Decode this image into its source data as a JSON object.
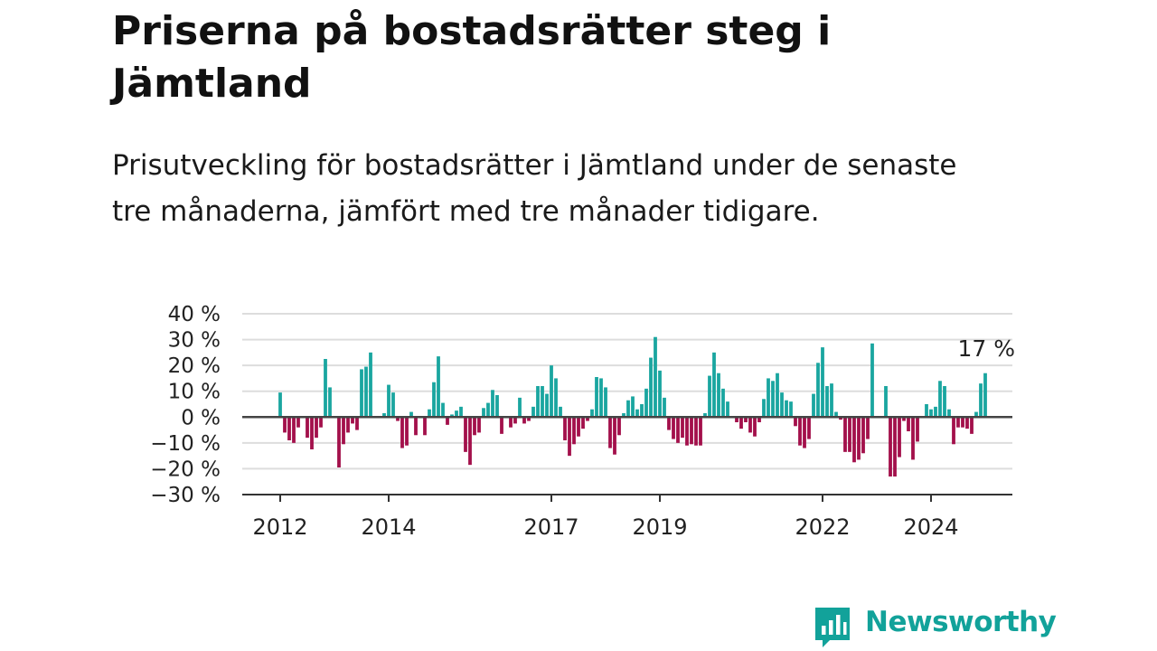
{
  "title": "Priserna på bostadsrätter steg i Jämtland",
  "subtitle": "Prisutveckling för bostadsrätter i Jämtland under de senaste tre månaderna, jämfört med tre månader tidigare.",
  "brand": {
    "name": "Newsworthy",
    "color": "#12a29a"
  },
  "colors": {
    "positive": "#1aa6a0",
    "negative": "#a3104b",
    "zero_line": "#444444",
    "grid": "#dddddd"
  },
  "chart_data": {
    "type": "bar",
    "title": "",
    "xlabel": "",
    "ylabel": "",
    "ylim": [
      -30,
      40
    ],
    "yticks": [
      40,
      30,
      20,
      10,
      0,
      -10,
      -20,
      -30
    ],
    "ytick_labels": [
      "40 %",
      "30 %",
      "20 %",
      "10 %",
      "0 %",
      "−10 %",
      "−20 %",
      "−30 %"
    ],
    "xtick_labels": [
      "2012",
      "2014",
      "2017",
      "2019",
      "2022",
      "2024"
    ],
    "grid": true,
    "legend": "none",
    "last_value_label": "17 %",
    "start_month": "2012-01",
    "end_month": "2025-04",
    "values": [
      9.5,
      -6,
      -9,
      -10,
      -4,
      0,
      -8,
      -12.5,
      -8,
      -4,
      22.5,
      11.5,
      0,
      -19.5,
      -10.5,
      -6,
      -2.5,
      -5,
      18.5,
      19.5,
      25,
      0,
      0,
      1.5,
      12.5,
      9.5,
      -1.5,
      -12,
      -11,
      2,
      -7,
      0,
      -7,
      3,
      13.5,
      23.5,
      5.5,
      -3,
      1,
      2.5,
      4,
      -13.5,
      -18.5,
      -7,
      -6,
      3.5,
      5.5,
      10.5,
      8.5,
      -6.5,
      0,
      -4,
      -2.5,
      7.5,
      -2.5,
      -1.5,
      4,
      12,
      12,
      9,
      20,
      15,
      4,
      -9,
      -15,
      -10.5,
      -7.5,
      -4.5,
      -1.5,
      3,
      15.5,
      15,
      11.5,
      -12,
      -14.5,
      -7,
      1.5,
      6.5,
      8,
      3,
      5,
      11,
      23,
      31,
      18,
      7.5,
      -5,
      -8.5,
      -10,
      -8,
      -11,
      -10.5,
      -11,
      -11,
      1.5,
      16,
      25,
      17,
      11,
      6,
      0,
      -2,
      -4.5,
      -2,
      -6,
      -7.5,
      -2,
      7,
      15,
      14,
      17,
      9.5,
      6.5,
      6,
      -3.5,
      -11,
      -12,
      -8.5,
      9,
      21,
      27,
      12,
      13,
      2,
      -1,
      -13.5,
      -13.5,
      -17.5,
      -16.5,
      -14,
      -8.5,
      28.5,
      0,
      0,
      12,
      -23,
      -23,
      -15.5,
      -1.5,
      -5.5,
      -16.5,
      -9.5,
      0,
      5,
      3,
      4,
      14,
      12,
      3,
      -10.5,
      -4,
      -4,
      -4.5,
      -6.5,
      2,
      13,
      17
    ]
  }
}
